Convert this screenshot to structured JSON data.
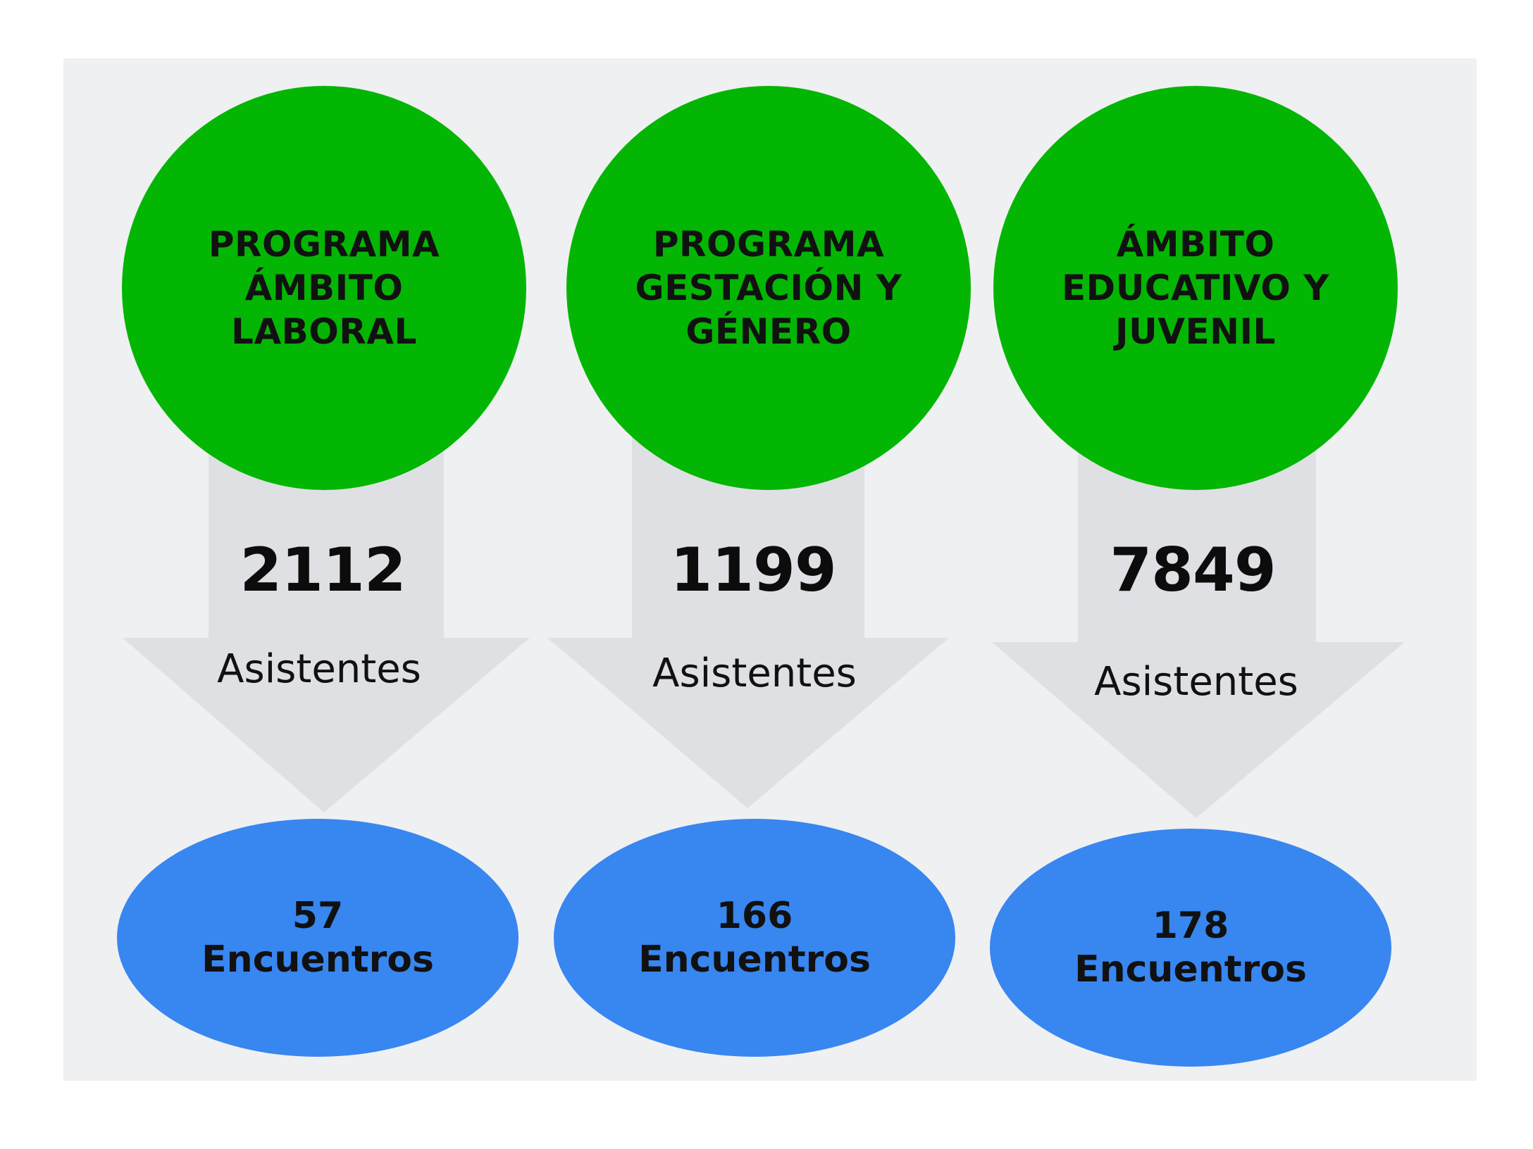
{
  "programs": [
    {
      "title": "PROGRAMA\nÁMBITO\nLABORAL",
      "attendees": "2112",
      "attendees_label": "Asistentes",
      "meetings": "57",
      "meetings_label": "Encuentros"
    },
    {
      "title": "PROGRAMA\nGESTACIÓN Y\nGÉNERO",
      "attendees": "1199",
      "attendees_label": "Asistentes",
      "meetings": "166",
      "meetings_label": "Encuentros"
    },
    {
      "title": "ÁMBITO\nEDUCATIVO Y\nJUVENIL",
      "attendees": "7849",
      "attendees_label": "Asistentes",
      "meetings": "178",
      "meetings_label": "Encuentros"
    }
  ],
  "colors": {
    "circle": "#04b604",
    "ellipse": "#3886f0",
    "arrow": "#dfe0e4",
    "panel": "#eff0f2"
  }
}
